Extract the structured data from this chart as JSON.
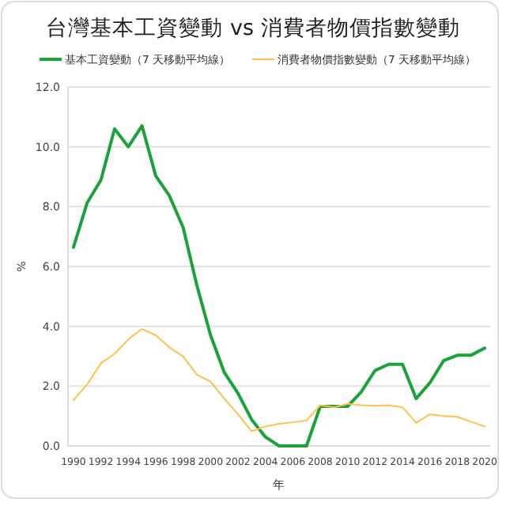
{
  "chart_data": {
    "type": "line",
    "title": "台灣基本工資變動 vs 消費者物價指數變動",
    "xlabel": "年",
    "ylabel": "%",
    "x": [
      1990,
      1991,
      1992,
      1993,
      1994,
      1995,
      1996,
      1997,
      1998,
      1999,
      2000,
      2001,
      2002,
      2003,
      2004,
      2005,
      2006,
      2007,
      2008,
      2009,
      2010,
      2011,
      2012,
      2013,
      2014,
      2015,
      2016,
      2017,
      2018,
      2019,
      2020
    ],
    "series": [
      {
        "name": "基本工資變動（7 天移動平均線）",
        "color": "#1aa33a",
        "values": [
          6.64,
          8.13,
          8.89,
          10.6,
          10.0,
          10.7,
          9.03,
          8.36,
          7.3,
          5.37,
          3.7,
          2.46,
          1.76,
          0.88,
          0.3,
          0,
          0,
          0,
          1.32,
          1.32,
          1.32,
          1.81,
          2.52,
          2.73,
          2.73,
          1.58,
          2.11,
          2.85,
          3.03,
          3.03,
          3.27
        ]
      },
      {
        "name": "消費者物價指數變動（7 天移動平均線）",
        "color": "#ffc04d",
        "values": [
          1.53,
          2.06,
          2.76,
          3.08,
          3.56,
          3.91,
          3.7,
          3.29,
          2.99,
          2.38,
          2.15,
          1.58,
          1.06,
          0.49,
          0.65,
          0.74,
          0.79,
          0.85,
          1.36,
          1.29,
          1.41,
          1.36,
          1.34,
          1.36,
          1.29,
          0.77,
          1.06,
          1.0,
          0.97,
          0.81,
          0.65
        ]
      }
    ],
    "xlim": [
      1989.6,
      2020.4
    ],
    "xticks": [
      1990,
      1992,
      1994,
      1996,
      1998,
      2000,
      2002,
      2004,
      2006,
      2008,
      2010,
      2012,
      2014,
      2016,
      2018,
      2020
    ],
    "ylim": [
      0,
      12
    ],
    "yticks": [
      {
        "value": 0,
        "label": "0.0"
      },
      {
        "value": 2,
        "label": "2.0"
      },
      {
        "value": 4,
        "label": "4.0"
      },
      {
        "value": 6,
        "label": "6.0"
      },
      {
        "value": 8,
        "label": "8.0"
      },
      {
        "value": 10,
        "label": "10.0"
      },
      {
        "value": 12,
        "label": "12.0"
      }
    ],
    "grid": "y",
    "legend": "top",
    "marker": "none",
    "line_style": "solid"
  }
}
